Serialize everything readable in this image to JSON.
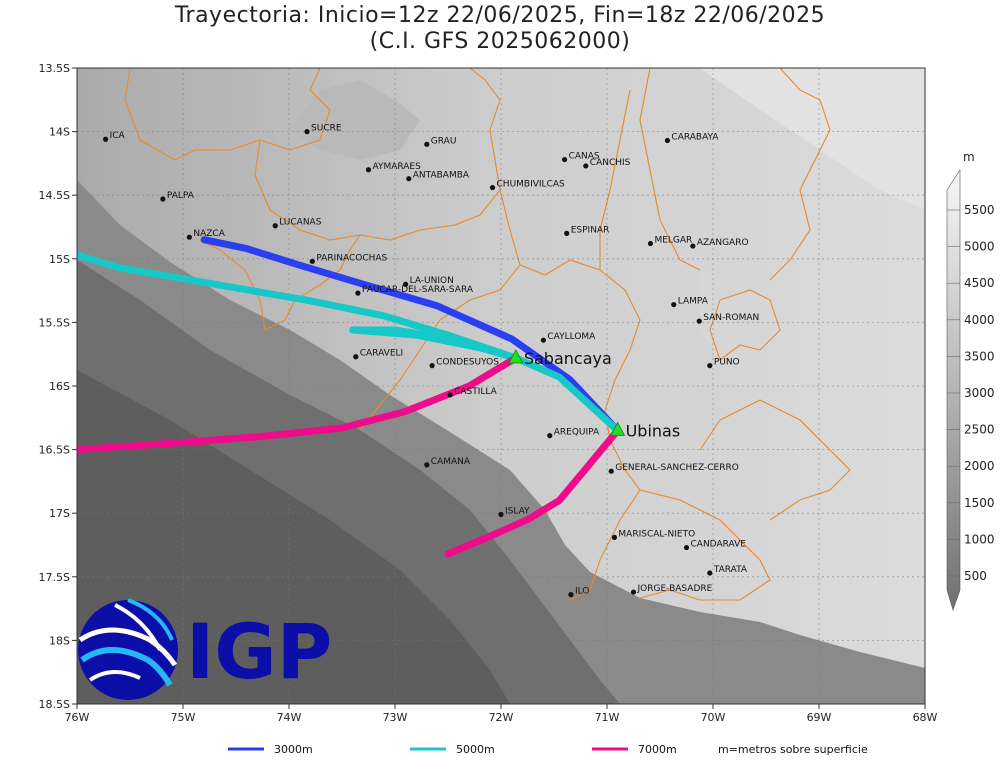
{
  "title": {
    "line1": "Trayectoria: Inicio=12z 22/06/2025, Fin=18z 22/06/2025",
    "line2": "(C.I. GFS 2025062000)"
  },
  "axes": {
    "x_ticks": [
      "76W",
      "75W",
      "74W",
      "73W",
      "72W",
      "71W",
      "70W",
      "69W",
      "68W"
    ],
    "y_ticks": [
      "13.5S",
      "14S",
      "14.5S",
      "15S",
      "15.5S",
      "16S",
      "16.5S",
      "17S",
      "17.5S",
      "18S",
      "18.5S"
    ]
  },
  "colorbar": {
    "unit": "m",
    "labels": [
      "5500",
      "5000",
      "4500",
      "4000",
      "3500",
      "3000",
      "2500",
      "2000",
      "1500",
      "1000",
      "500"
    ]
  },
  "places": [
    {
      "name": "ICA",
      "lon": -75.73,
      "lat": -14.06
    },
    {
      "name": "SUCRE",
      "lon": -73.83,
      "lat": -14.0
    },
    {
      "name": "GRAU",
      "lon": -72.7,
      "lat": -14.1
    },
    {
      "name": "CANAS",
      "lon": -71.4,
      "lat": -14.22
    },
    {
      "name": "CANCHIS",
      "lon": -71.2,
      "lat": -14.27
    },
    {
      "name": "CARABAYA",
      "lon": -70.43,
      "lat": -14.07
    },
    {
      "name": "AYMARAES",
      "lon": -73.25,
      "lat": -14.3
    },
    {
      "name": "ANTABAMBA",
      "lon": -72.87,
      "lat": -14.37
    },
    {
      "name": "CHUMBIVILCAS",
      "lon": -72.08,
      "lat": -14.44
    },
    {
      "name": "PALPA",
      "lon": -75.19,
      "lat": -14.53
    },
    {
      "name": "LUCANAS",
      "lon": -74.13,
      "lat": -14.74
    },
    {
      "name": "ESPINAR",
      "lon": -71.38,
      "lat": -14.8
    },
    {
      "name": "NAZCA",
      "lon": -74.94,
      "lat": -14.83
    },
    {
      "name": "MELGAR",
      "lon": -70.59,
      "lat": -14.88
    },
    {
      "name": "AZANGARO",
      "lon": -70.19,
      "lat": -14.9
    },
    {
      "name": "PARINACOCHAS",
      "lon": -73.78,
      "lat": -15.02
    },
    {
      "name": "LA-UNION",
      "lon": -72.9,
      "lat": -15.2
    },
    {
      "name": "PAUCAR-DEL-SARA-SARA",
      "lon": -73.35,
      "lat": -15.27
    },
    {
      "name": "LAMPA",
      "lon": -70.37,
      "lat": -15.36
    },
    {
      "name": "SAN-ROMAN",
      "lon": -70.13,
      "lat": -15.49
    },
    {
      "name": "CAYLLOMA",
      "lon": -71.6,
      "lat": -15.64
    },
    {
      "name": "CARAVELI",
      "lon": -73.37,
      "lat": -15.77
    },
    {
      "name": "CONDESUYOS",
      "lon": -72.65,
      "lat": -15.84
    },
    {
      "name": "PUNO",
      "lon": -70.03,
      "lat": -15.84
    },
    {
      "name": "CASTILLA",
      "lon": -72.48,
      "lat": -16.07
    },
    {
      "name": "AREQUIPA",
      "lon": -71.54,
      "lat": -16.39
    },
    {
      "name": "GENERAL-SANCHEZ-CERRO",
      "lon": -70.96,
      "lat": -16.67
    },
    {
      "name": "CAMANA",
      "lon": -72.7,
      "lat": -16.62
    },
    {
      "name": "ISLAY",
      "lon": -72.0,
      "lat": -17.01
    },
    {
      "name": "MARISCAL-NIETO",
      "lon": -70.93,
      "lat": -17.19
    },
    {
      "name": "CANDARAVE",
      "lon": -70.25,
      "lat": -17.27
    },
    {
      "name": "TARATA",
      "lon": -70.03,
      "lat": -17.47
    },
    {
      "name": "ILO",
      "lon": -71.34,
      "lat": -17.64
    },
    {
      "name": "JORGE-BASADRE",
      "lon": -70.75,
      "lat": -17.62
    }
  ],
  "volcanoes": [
    {
      "name": "Sabancaya",
      "lon": -71.86,
      "lat": -15.78
    },
    {
      "name": "Ubinas",
      "lon": -70.9,
      "lat": -16.35
    }
  ],
  "trajectories": [
    {
      "level": "3000m",
      "color": "#2a3ff0",
      "points": [
        [
          -70.9,
          -16.35
        ],
        [
          -71.35,
          -15.95
        ],
        [
          -71.9,
          -15.63
        ],
        [
          -72.6,
          -15.37
        ],
        [
          -73.3,
          -15.2
        ],
        [
          -73.9,
          -15.05
        ],
        [
          -74.4,
          -14.92
        ],
        [
          -74.8,
          -14.85
        ]
      ]
    },
    {
      "level": "5000m",
      "color": "#18c8c8",
      "points": [
        [
          -70.9,
          -16.35
        ],
        [
          -71.45,
          -15.93
        ],
        [
          -71.86,
          -15.78
        ],
        [
          -72.5,
          -15.6
        ],
        [
          -73.1,
          -15.45
        ],
        [
          -73.8,
          -15.33
        ],
        [
          -74.7,
          -15.2
        ],
        [
          -75.6,
          -15.07
        ],
        [
          -76.0,
          -14.97
        ]
      ]
    },
    {
      "level": "5000m",
      "color": "#18c8c8",
      "points": [
        [
          -71.86,
          -15.78
        ],
        [
          -72.4,
          -15.64
        ],
        [
          -73.0,
          -15.56
        ],
        [
          -73.4,
          -15.56
        ],
        [
          -72.8,
          -15.6
        ],
        [
          -72.2,
          -15.7
        ],
        [
          -71.86,
          -15.78
        ]
      ]
    },
    {
      "level": "7000m",
      "color": "#ee0c8c",
      "points": [
        [
          -70.9,
          -16.35
        ],
        [
          -71.2,
          -16.65
        ],
        [
          -71.45,
          -16.9
        ],
        [
          -71.75,
          -17.05
        ],
        [
          -72.1,
          -17.18
        ],
        [
          -72.5,
          -17.32
        ]
      ]
    },
    {
      "level": "7000m",
      "color": "#ee0c8c",
      "points": [
        [
          -71.86,
          -15.78
        ],
        [
          -72.3,
          -16.0
        ],
        [
          -72.9,
          -16.2
        ],
        [
          -73.5,
          -16.33
        ],
        [
          -74.3,
          -16.4
        ],
        [
          -75.1,
          -16.45
        ],
        [
          -76.0,
          -16.5
        ]
      ]
    }
  ],
  "legend": [
    {
      "label": "3000m",
      "color": "#2a3ff0"
    },
    {
      "label": "5000m",
      "color": "#18c8c8"
    },
    {
      "label": "7000m",
      "color": "#ee0c8c"
    }
  ],
  "legend_note": "m=metros sobre superficie",
  "logo": {
    "text": "IGP"
  }
}
